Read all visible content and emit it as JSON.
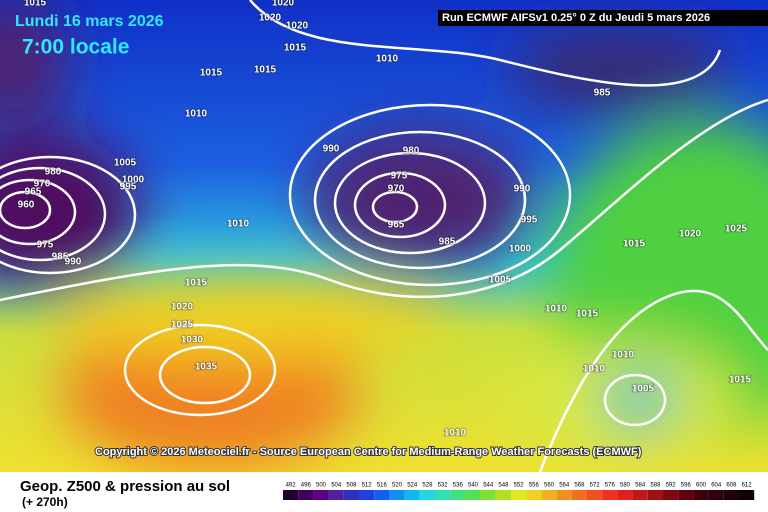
{
  "header": {
    "date": "Lundi 16 mars 2026",
    "time": "7:00 locale",
    "run": "Run ECMWF AIFSv1 0.25° 0 Z du Jeudi 5 mars 2026"
  },
  "copyright": "Copyright © 2026 Meteociel.fr - Source European Centre for Medium-Range Weather Forecasts (ECMWF)",
  "isobar_labels": [
    "1015",
    "1020",
    "1020",
    "1020",
    "1015",
    "1010",
    "1015",
    "1015",
    "985",
    "1010",
    "990",
    "980",
    "1005",
    "1000",
    "995",
    "980",
    "970",
    "965",
    "960",
    "975",
    "985",
    "990",
    "975",
    "970",
    "965",
    "990",
    "995",
    "985",
    "1000",
    "1010",
    "1015",
    "1020",
    "1025",
    "1005",
    "1015",
    "1020",
    "1025",
    "1030",
    "1035",
    "1010",
    "1015",
    "1010",
    "1010",
    "1005",
    "1015",
    "1010"
  ],
  "legend": {
    "title": "Geop. Z500 & pression au sol",
    "lead": "(+ 270h)",
    "scale": [
      492,
      496,
      500,
      504,
      508,
      512,
      516,
      520,
      524,
      528,
      532,
      536,
      540,
      544,
      548,
      552,
      556,
      560,
      564,
      568,
      572,
      576,
      580,
      584,
      588,
      592,
      596,
      600,
      604,
      608,
      612
    ]
  }
}
